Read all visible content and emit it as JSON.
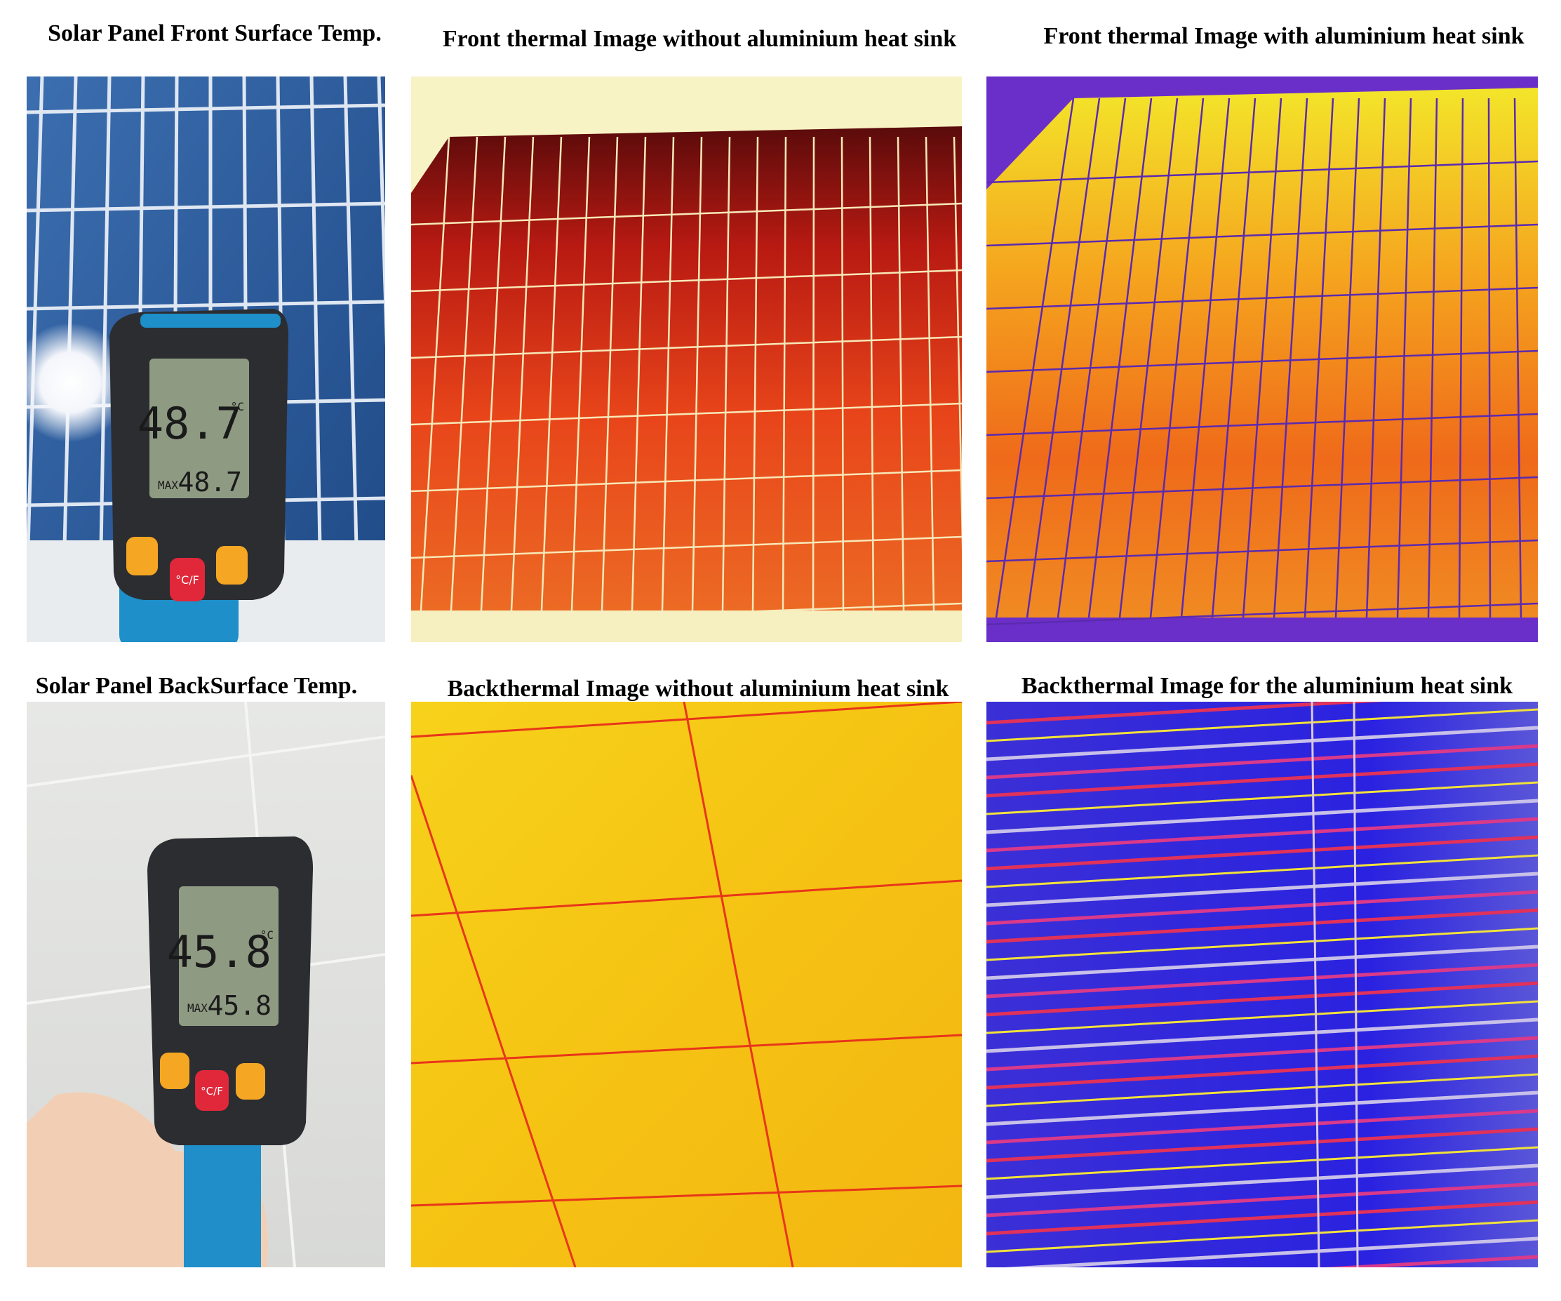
{
  "panels": [
    {
      "title": "Solar Panel Front Surface Temp.",
      "reading": "48.7",
      "unit": "°C",
      "max_label": "MAX",
      "max_reading": "48.7",
      "button": "°C/F"
    },
    {
      "title": "Front thermal Image without aluminium  heat sink"
    },
    {
      "title": "Front thermal Image with aluminium  heat sink"
    },
    {
      "title": "Solar Panel BackSurface Temp.",
      "reading": "45.8",
      "unit": "°C",
      "max_label": "MAX",
      "max_reading": "45.8",
      "button": "°C/F"
    },
    {
      "title": "Backthermal Image  without aluminium  heat sink"
    },
    {
      "title": "Backthermal Image  for the aluminium  heat sink"
    }
  ]
}
